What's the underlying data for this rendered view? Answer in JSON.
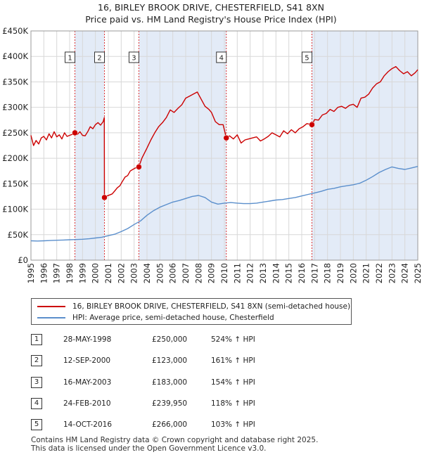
{
  "header": {
    "title": "16, BIRLEY BROOK DRIVE, CHESTERFIELD, S41 8XN",
    "subtitle": "Price paid vs. HM Land Registry's House Price Index (HPI)"
  },
  "colors": {
    "property": "#cc0000",
    "hpi": "#5b8fcc",
    "shade": "#e3ebf7",
    "marker_line": "#dd3333"
  },
  "chart_data": {
    "type": "line",
    "xlim": [
      1995,
      2025
    ],
    "ylim": [
      0,
      450000
    ],
    "x_ticks": [
      "1995",
      "1996",
      "1997",
      "1998",
      "1999",
      "2000",
      "2001",
      "2002",
      "2003",
      "2004",
      "2005",
      "2006",
      "2007",
      "2008",
      "2009",
      "2010",
      "2011",
      "2012",
      "2013",
      "2014",
      "2015",
      "2016",
      "2017",
      "2018",
      "2019",
      "2020",
      "2021",
      "2022",
      "2023",
      "2024",
      "2025"
    ],
    "y_ticks": [
      {
        "value": 0,
        "label": "£0"
      },
      {
        "value": 50000,
        "label": "£50K"
      },
      {
        "value": 100000,
        "label": "£100K"
      },
      {
        "value": 150000,
        "label": "£150K"
      },
      {
        "value": 200000,
        "label": "£200K"
      },
      {
        "value": 250000,
        "label": "£250K"
      },
      {
        "value": 300000,
        "label": "£300K"
      },
      {
        "value": 350000,
        "label": "£350K"
      },
      {
        "value": 400000,
        "label": "£400K"
      },
      {
        "value": 450000,
        "label": "£450K"
      }
    ],
    "shaded_periods": [
      [
        1998.41,
        2000.7
      ],
      [
        2003.37,
        2010.15
      ],
      [
        2016.79,
        2025.0
      ]
    ],
    "series": [
      {
        "name": "16, BIRLEY BROOK DRIVE, CHESTERFIELD, S41 8XN (semi-detached house)",
        "x": [
          1995.0,
          1995.2,
          1995.4,
          1995.6,
          1995.8,
          1996.0,
          1996.2,
          1996.4,
          1996.6,
          1996.8,
          1997.0,
          1997.2,
          1997.4,
          1997.6,
          1997.8,
          1998.0,
          1998.2,
          1998.41,
          1998.6,
          1998.8,
          1999.0,
          1999.2,
          1999.4,
          1999.6,
          1999.8,
          2000.0,
          2000.2,
          2000.4,
          2000.6,
          2000.69,
          2000.7,
          2000.9,
          2001.1,
          2001.3,
          2001.5,
          2001.7,
          2001.9,
          2002.1,
          2002.3,
          2002.5,
          2002.7,
          2002.9,
          2003.1,
          2003.37,
          2003.6,
          2003.8,
          2004.0,
          2004.3,
          2004.6,
          2004.9,
          2005.2,
          2005.5,
          2005.8,
          2006.1,
          2006.4,
          2006.7,
          2007.0,
          2007.3,
          2007.6,
          2007.9,
          2008.2,
          2008.5,
          2008.8,
          2009.0,
          2009.3,
          2009.6,
          2009.9,
          2010.15,
          2010.4,
          2010.7,
          2011.0,
          2011.3,
          2011.6,
          2011.9,
          2012.2,
          2012.5,
          2012.8,
          2013.1,
          2013.4,
          2013.7,
          2014.0,
          2014.3,
          2014.6,
          2014.9,
          2015.2,
          2015.5,
          2015.8,
          2016.1,
          2016.4,
          2016.79,
          2017.0,
          2017.3,
          2017.6,
          2017.9,
          2018.2,
          2018.5,
          2018.8,
          2019.1,
          2019.4,
          2019.7,
          2020.0,
          2020.3,
          2020.6,
          2020.9,
          2021.2,
          2021.5,
          2021.8,
          2022.1,
          2022.4,
          2022.7,
          2023.0,
          2023.3,
          2023.6,
          2023.9,
          2024.2,
          2024.5,
          2024.8,
          2025.0
        ],
        "values": [
          245000,
          225000,
          235000,
          228000,
          240000,
          243000,
          236000,
          248000,
          240000,
          252000,
          242000,
          246000,
          238000,
          250000,
          243000,
          245000,
          247000,
          250000,
          247000,
          252000,
          245000,
          244000,
          252000,
          262000,
          258000,
          266000,
          270000,
          265000,
          272000,
          280000,
          123000,
          126000,
          128000,
          130000,
          136000,
          142000,
          146000,
          155000,
          163000,
          166000,
          175000,
          178000,
          181000,
          183000,
          200000,
          210000,
          220000,
          236000,
          250000,
          262000,
          270000,
          280000,
          295000,
          290000,
          298000,
          305000,
          318000,
          322000,
          326000,
          330000,
          316000,
          302000,
          296000,
          290000,
          272000,
          266000,
          266000,
          239950,
          244000,
          238000,
          246000,
          230000,
          236000,
          238000,
          240000,
          242000,
          234000,
          238000,
          243000,
          250000,
          246000,
          242000,
          254000,
          248000,
          256000,
          250000,
          258000,
          262000,
          268000,
          266000,
          276000,
          275000,
          285000,
          288000,
          296000,
          292000,
          300000,
          302000,
          298000,
          304000,
          306000,
          300000,
          318000,
          320000,
          326000,
          338000,
          346000,
          350000,
          362000,
          370000,
          376000,
          380000,
          372000,
          366000,
          370000,
          362000,
          368000,
          374000
        ]
      },
      {
        "name": "HPI: Average price, semi-detached house, Chesterfield",
        "x": [
          1995.0,
          1995.5,
          1996.0,
          1996.5,
          1997.0,
          1997.5,
          1998.0,
          1998.5,
          1999.0,
          1999.5,
          2000.0,
          2000.5,
          2001.0,
          2001.5,
          2002.0,
          2002.5,
          2003.0,
          2003.5,
          2004.0,
          2004.5,
          2005.0,
          2005.5,
          2006.0,
          2006.5,
          2007.0,
          2007.5,
          2008.0,
          2008.5,
          2009.0,
          2009.5,
          2010.0,
          2010.5,
          2011.0,
          2011.5,
          2012.0,
          2012.5,
          2013.0,
          2013.5,
          2014.0,
          2014.5,
          2015.0,
          2015.5,
          2016.0,
          2016.5,
          2017.0,
          2017.5,
          2018.0,
          2018.5,
          2019.0,
          2019.5,
          2020.0,
          2020.5,
          2021.0,
          2021.5,
          2022.0,
          2022.5,
          2023.0,
          2023.5,
          2024.0,
          2024.5,
          2025.0
        ],
        "values": [
          38000,
          37500,
          38000,
          38500,
          39000,
          39500,
          40000,
          40500,
          41000,
          42000,
          43500,
          45000,
          48000,
          51000,
          56000,
          62000,
          70000,
          77000,
          88000,
          97000,
          104000,
          109000,
          114000,
          117000,
          121000,
          125000,
          127000,
          123000,
          114000,
          110000,
          112000,
          113000,
          112000,
          111000,
          111000,
          112000,
          114000,
          116000,
          118000,
          119000,
          121000,
          123000,
          126000,
          129000,
          132000,
          135000,
          139000,
          141000,
          144000,
          146000,
          148000,
          151000,
          157000,
          164000,
          172000,
          178000,
          183000,
          180000,
          178000,
          181000,
          184000
        ]
      }
    ],
    "sales": [
      {
        "n": "1",
        "x": 1998.41,
        "value": 250000
      },
      {
        "n": "2",
        "x": 2000.7,
        "value": 123000
      },
      {
        "n": "3",
        "x": 2003.37,
        "value": 183000
      },
      {
        "n": "4",
        "x": 2010.15,
        "value": 239950
      },
      {
        "n": "5",
        "x": 2016.79,
        "value": 266000
      }
    ]
  },
  "legend": {
    "property_label": "16, BIRLEY BROOK DRIVE, CHESTERFIELD, S41 8XN (semi-detached house)",
    "hpi_label": "HPI: Average price, semi-detached house, Chesterfield"
  },
  "transactions": [
    {
      "n": "1",
      "date": "28-MAY-1998",
      "price": "£250,000",
      "hpi": "524% ↑ HPI"
    },
    {
      "n": "2",
      "date": "12-SEP-2000",
      "price": "£123,000",
      "hpi": "161% ↑ HPI"
    },
    {
      "n": "3",
      "date": "16-MAY-2003",
      "price": "£183,000",
      "hpi": "154% ↑ HPI"
    },
    {
      "n": "4",
      "date": "24-FEB-2010",
      "price": "£239,950",
      "hpi": "118% ↑ HPI"
    },
    {
      "n": "5",
      "date": "14-OCT-2016",
      "price": "£266,000",
      "hpi": "103% ↑ HPI"
    }
  ],
  "footer": {
    "line1": "Contains HM Land Registry data © Crown copyright and database right 2025.",
    "line2": "This data is licensed under the Open Government Licence v3.0."
  }
}
